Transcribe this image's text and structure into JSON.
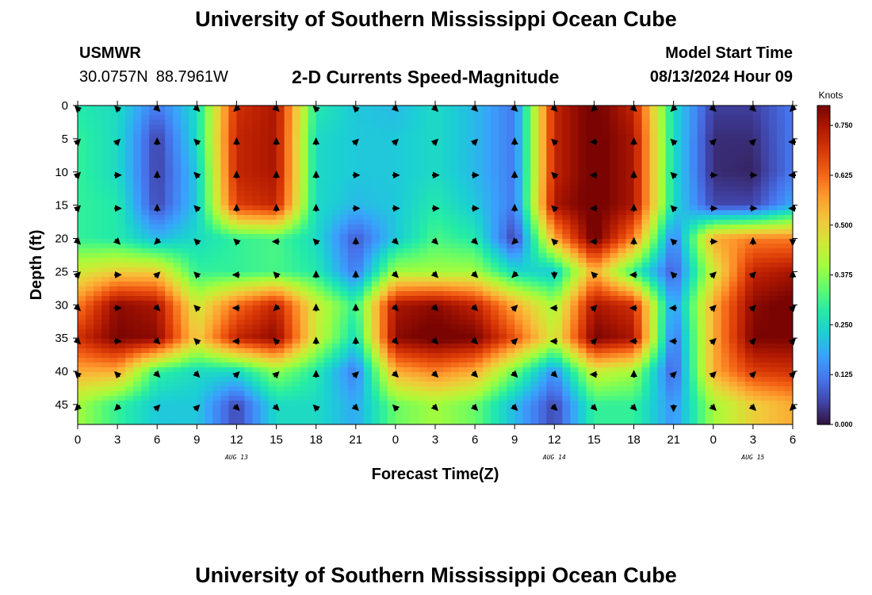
{
  "header": {
    "title": "University of Southern Mississippi Ocean Cube",
    "station": "USMWR",
    "lat": "30.0757N",
    "lon": "88.7961W",
    "subtitle": "2-D Currents Speed-Magnitude",
    "model_start_label": "Model Start Time",
    "model_start_value": "08/13/2024 Hour 09"
  },
  "footer": {
    "title": "University of Southern Mississippi Ocean Cube"
  },
  "chart_data": {
    "type": "heatmap",
    "title": "2-D Currents Speed-Magnitude",
    "xlabel": "Forecast Time(Z)",
    "ylabel": "Depth (ft)",
    "x_tick_labels": [
      "0",
      "3",
      "6",
      "9",
      "12",
      "15",
      "18",
      "21",
      "0",
      "3",
      "6",
      "9",
      "12",
      "15",
      "18",
      "21",
      "0",
      "3",
      "6"
    ],
    "date_labels": [
      {
        "label": "AUG 13",
        "at_hour": 12
      },
      {
        "label": "AUG 14",
        "at_hour": 36
      },
      {
        "label": "AUG 15",
        "at_hour": 51
      }
    ],
    "y_tick_labels": [
      "0",
      "5",
      "10",
      "15",
      "20",
      "25",
      "30",
      "35",
      "40",
      "45"
    ],
    "x_hours": [
      0,
      3,
      6,
      9,
      12,
      15,
      18,
      21,
      24,
      27,
      30,
      33,
      36,
      39,
      42,
      45,
      48,
      51,
      54
    ],
    "depths_ft": [
      0,
      5,
      10,
      15,
      20,
      25,
      30,
      35,
      40,
      45
    ],
    "ylim": [
      0,
      48
    ],
    "y_inverted": true,
    "xlim": [
      0,
      54
    ],
    "colorbar": {
      "unit": "Knots",
      "min": 0.0,
      "max": 0.8,
      "tick_labels": [
        "0.000",
        "0.125",
        "0.250",
        "0.375",
        "0.500",
        "0.625",
        "0.750"
      ],
      "tick_values": [
        0.0,
        0.125,
        0.25,
        0.375,
        0.5,
        0.625,
        0.75
      ],
      "colormap": [
        "#30123b",
        "#4145ab",
        "#4675ed",
        "#39a2fc",
        "#1bcfd4",
        "#24eca6",
        "#61fc6c",
        "#a4fc3b",
        "#d1e834",
        "#f3c63a",
        "#fe9b2d",
        "#f36315",
        "#d93806",
        "#b11901",
        "#7a0402"
      ]
    },
    "speed_knots": [
      [
        0.28,
        0.25,
        0.12,
        0.25,
        0.7,
        0.75,
        0.28,
        0.22,
        0.2,
        0.25,
        0.2,
        0.12,
        0.72,
        0.82,
        0.72,
        0.25,
        0.05,
        0.05,
        0.12
      ],
      [
        0.3,
        0.25,
        0.05,
        0.25,
        0.72,
        0.75,
        0.25,
        0.22,
        0.22,
        0.25,
        0.2,
        0.12,
        0.72,
        0.82,
        0.75,
        0.25,
        0.03,
        0.03,
        0.12
      ],
      [
        0.3,
        0.25,
        0.05,
        0.22,
        0.72,
        0.75,
        0.25,
        0.22,
        0.22,
        0.25,
        0.2,
        0.12,
        0.72,
        0.82,
        0.75,
        0.25,
        0.03,
        0.02,
        0.12
      ],
      [
        0.3,
        0.28,
        0.06,
        0.22,
        0.68,
        0.72,
        0.25,
        0.2,
        0.22,
        0.28,
        0.22,
        0.12,
        0.75,
        0.82,
        0.75,
        0.25,
        0.06,
        0.06,
        0.18
      ],
      [
        0.3,
        0.28,
        0.2,
        0.25,
        0.3,
        0.32,
        0.25,
        0.08,
        0.22,
        0.32,
        0.28,
        0.05,
        0.55,
        0.82,
        0.6,
        0.12,
        0.55,
        0.6,
        0.6
      ],
      [
        0.45,
        0.5,
        0.5,
        0.3,
        0.3,
        0.32,
        0.28,
        0.12,
        0.4,
        0.4,
        0.4,
        0.25,
        0.22,
        0.55,
        0.3,
        0.08,
        0.45,
        0.72,
        0.75
      ],
      [
        0.6,
        0.78,
        0.75,
        0.45,
        0.62,
        0.72,
        0.45,
        0.3,
        0.75,
        0.78,
        0.72,
        0.55,
        0.4,
        0.75,
        0.7,
        0.15,
        0.55,
        0.78,
        0.82
      ],
      [
        0.7,
        0.8,
        0.78,
        0.5,
        0.72,
        0.78,
        0.45,
        0.25,
        0.78,
        0.82,
        0.8,
        0.65,
        0.45,
        0.8,
        0.75,
        0.1,
        0.55,
        0.8,
        0.8
      ],
      [
        0.55,
        0.55,
        0.3,
        0.25,
        0.25,
        0.38,
        0.28,
        0.12,
        0.55,
        0.6,
        0.55,
        0.35,
        0.15,
        0.45,
        0.4,
        0.08,
        0.55,
        0.68,
        0.7
      ],
      [
        0.4,
        0.3,
        0.22,
        0.22,
        0.06,
        0.25,
        0.25,
        0.18,
        0.35,
        0.4,
        0.35,
        0.2,
        0.06,
        0.3,
        0.3,
        0.15,
        0.4,
        0.5,
        0.55
      ]
    ],
    "arrow_directions_deg": [
      [
        135,
        135,
        315,
        315,
        225,
        315,
        135,
        135,
        315,
        315,
        315,
        315,
        315,
        225,
        315,
        225,
        315,
        315,
        225
      ],
      [
        45,
        45,
        90,
        135,
        90,
        90,
        90,
        45,
        45,
        45,
        45,
        90,
        135,
        180,
        90,
        135,
        45,
        45,
        180
      ],
      [
        45,
        0,
        90,
        135,
        90,
        90,
        90,
        0,
        0,
        0,
        0,
        90,
        135,
        180,
        90,
        135,
        0,
        0,
        180
      ],
      [
        45,
        0,
        90,
        135,
        90,
        90,
        90,
        0,
        0,
        0,
        0,
        90,
        135,
        180,
        90,
        135,
        0,
        0,
        180
      ],
      [
        315,
        315,
        225,
        135,
        135,
        180,
        135,
        90,
        315,
        315,
        315,
        225,
        135,
        180,
        90,
        135,
        0,
        90,
        270
      ],
      [
        45,
        0,
        45,
        135,
        180,
        135,
        90,
        90,
        315,
        315,
        315,
        225,
        270,
        135,
        180,
        135,
        45,
        45,
        90
      ],
      [
        315,
        0,
        315,
        135,
        180,
        225,
        90,
        90,
        315,
        315,
        315,
        45,
        180,
        45,
        180,
        180,
        45,
        45,
        45
      ],
      [
        315,
        0,
        315,
        135,
        180,
        135,
        90,
        90,
        315,
        315,
        315,
        45,
        180,
        45,
        180,
        180,
        45,
        45,
        45
      ],
      [
        135,
        135,
        315,
        315,
        45,
        45,
        90,
        45,
        315,
        315,
        315,
        315,
        315,
        180,
        90,
        45,
        45,
        45,
        45
      ],
      [
        225,
        225,
        45,
        45,
        315,
        315,
        135,
        315,
        135,
        315,
        315,
        315,
        315,
        315,
        315,
        270,
        315,
        315,
        225
      ]
    ]
  }
}
